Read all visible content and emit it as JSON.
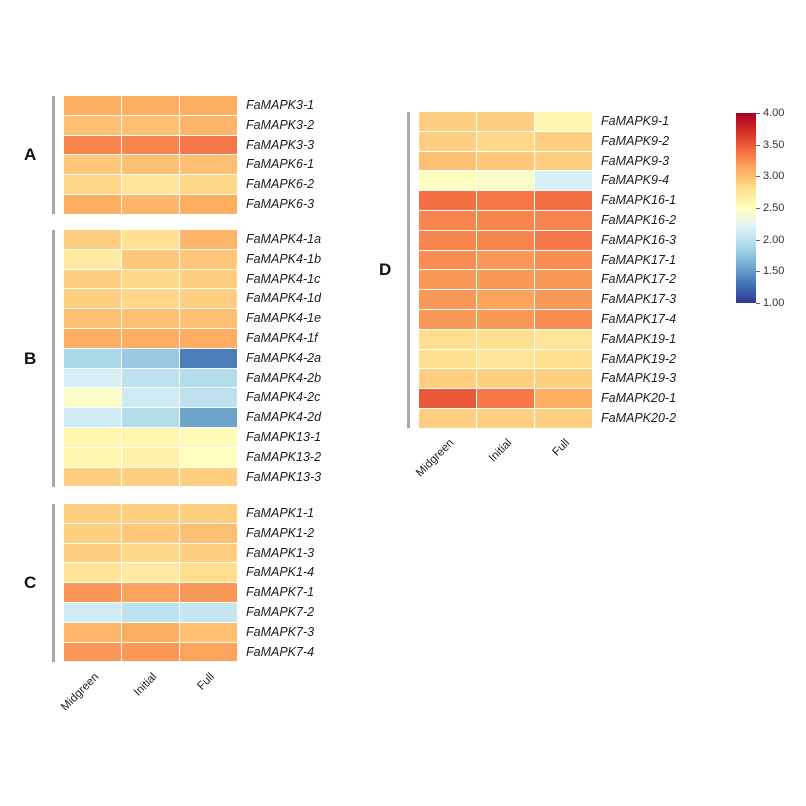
{
  "figure": {
    "background": "#ffffff"
  },
  "colorbar": {
    "ticks": [
      "4.00",
      "3.50",
      "3.00",
      "2.50",
      "2.00",
      "1.50",
      "1.00"
    ],
    "min": 1.0,
    "max": 4.0
  },
  "chart_data": {
    "type": "heatmap",
    "columns": [
      "Midgreen",
      "Initial",
      "Full"
    ],
    "vmin": 1.0,
    "vmax": 4.0,
    "legend_position": "right",
    "colorscale": {
      "name": "RdYlBu_r",
      "colors_low_to_high": [
        "#313695",
        "#4575b4",
        "#74add1",
        "#abd9e9",
        "#e0f3f8",
        "#ffffbf",
        "#fee090",
        "#fdae61",
        "#f46d43",
        "#d73027",
        "#a50026"
      ]
    },
    "panels": [
      {
        "label": "A",
        "genes": [
          "FaMAPK3-1",
          "FaMAPK3-2",
          "FaMAPK3-3",
          "FaMAPK6-1",
          "FaMAPK6-2",
          "FaMAPK6-3"
        ],
        "values": [
          [
            3.1,
            3.1,
            3.1
          ],
          [
            3.0,
            3.0,
            3.05
          ],
          [
            3.3,
            3.3,
            3.35
          ],
          [
            2.95,
            3.0,
            3.0
          ],
          [
            2.85,
            2.75,
            2.85
          ],
          [
            3.1,
            3.05,
            3.1
          ]
        ]
      },
      {
        "label": "B",
        "genes": [
          "FaMAPK4-1a",
          "FaMAPK4-1b",
          "FaMAPK4-1c",
          "FaMAPK4-1d",
          "FaMAPK4-1e",
          "FaMAPK4-1f",
          "FaMAPK4-2a",
          "FaMAPK4-2b",
          "FaMAPK4-2c",
          "FaMAPK4-2d",
          "FaMAPK13-1",
          "FaMAPK13-2",
          "FaMAPK13-3"
        ],
        "values": [
          [
            2.9,
            2.8,
            3.05
          ],
          [
            2.7,
            2.95,
            2.95
          ],
          [
            2.9,
            2.85,
            2.9
          ],
          [
            2.9,
            2.85,
            2.9
          ],
          [
            3.0,
            3.0,
            3.0
          ],
          [
            3.1,
            3.1,
            3.1
          ],
          [
            1.9,
            1.8,
            1.35
          ],
          [
            2.15,
            2.0,
            1.95
          ],
          [
            2.45,
            2.1,
            2.0
          ],
          [
            2.1,
            1.95,
            1.55
          ],
          [
            2.6,
            2.6,
            2.55
          ],
          [
            2.6,
            2.65,
            2.5
          ],
          [
            2.9,
            2.9,
            2.9
          ]
        ]
      },
      {
        "label": "C",
        "genes": [
          "FaMAPK1-1",
          "FaMAPK1-2",
          "FaMAPK1-3",
          "FaMAPK1-4",
          "FaMAPK7-1",
          "FaMAPK7-2",
          "FaMAPK7-3",
          "FaMAPK7-4"
        ],
        "values": [
          [
            2.9,
            2.9,
            2.9
          ],
          [
            2.9,
            2.95,
            3.0
          ],
          [
            2.9,
            2.85,
            2.9
          ],
          [
            2.75,
            2.7,
            2.8
          ],
          [
            3.2,
            3.15,
            3.2
          ],
          [
            2.1,
            2.0,
            2.05
          ],
          [
            3.05,
            3.1,
            3.0
          ],
          [
            3.2,
            3.2,
            3.15
          ]
        ]
      },
      {
        "label": "D",
        "genes": [
          "FaMAPK9-1",
          "FaMAPK9-2",
          "FaMAPK9-3",
          "FaMAPK9-4",
          "FaMAPK16-1",
          "FaMAPK16-2",
          "FaMAPK16-3",
          "FaMAPK17-1",
          "FaMAPK17-2",
          "FaMAPK17-3",
          "FaMAPK17-4",
          "FaMAPK19-1",
          "FaMAPK19-2",
          "FaMAPK19-3",
          "FaMAPK20-1",
          "FaMAPK20-2"
        ],
        "values": [
          [
            2.9,
            2.9,
            2.6
          ],
          [
            2.9,
            2.85,
            2.9
          ],
          [
            3.0,
            2.95,
            2.9
          ],
          [
            2.5,
            2.45,
            2.15
          ],
          [
            3.4,
            3.35,
            3.4
          ],
          [
            3.3,
            3.3,
            3.3
          ],
          [
            3.3,
            3.3,
            3.35
          ],
          [
            3.25,
            3.2,
            3.25
          ],
          [
            3.2,
            3.2,
            3.2
          ],
          [
            3.2,
            3.15,
            3.2
          ],
          [
            3.2,
            3.2,
            3.25
          ],
          [
            2.8,
            2.8,
            2.75
          ],
          [
            2.8,
            2.75,
            2.8
          ],
          [
            2.9,
            2.9,
            2.9
          ],
          [
            3.5,
            3.35,
            3.1
          ],
          [
            2.9,
            2.9,
            2.9
          ]
        ]
      }
    ]
  }
}
